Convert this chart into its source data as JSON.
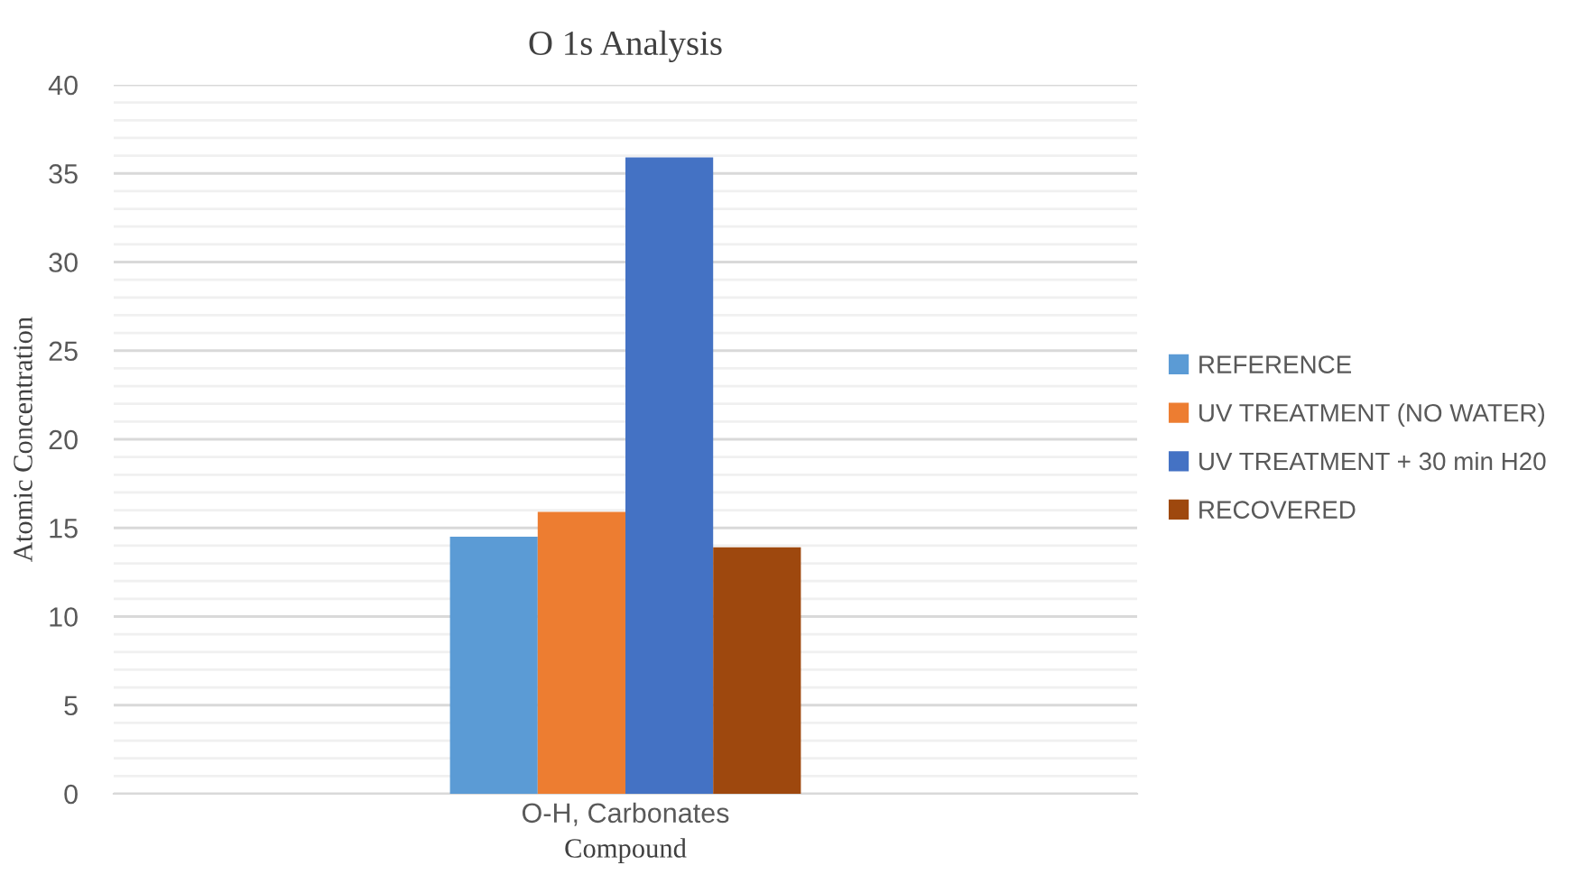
{
  "chart_data": {
    "type": "bar",
    "title": "O 1s Analysis",
    "xlabel": "Compound",
    "ylabel": "Atomic Concentration",
    "categories": [
      "O-H, Carbonates"
    ],
    "series": [
      {
        "name": "REFERENCE",
        "color": "#5b9bd5",
        "values": [
          14.5
        ]
      },
      {
        "name": "UV TREATMENT (NO WATER)",
        "color": "#ed7d31",
        "values": [
          15.9
        ]
      },
      {
        "name": "UV TREATMENT + 30 min H20",
        "color": "#4472c4",
        "values": [
          35.9
        ]
      },
      {
        "name": "RECOVERED",
        "color": "#9e480e",
        "values": [
          13.9
        ]
      }
    ],
    "ylim": [
      0,
      40
    ],
    "yticks": [
      0,
      {
        "value": 1,
        "label": null
      },
      {
        "value": 2,
        "label": null
      },
      {
        "value": 3,
        "label": null
      },
      {
        "value": 4,
        "label": null
      },
      5,
      {
        "value": 6,
        "label": null
      },
      {
        "value": 7,
        "label": null
      },
      {
        "value": 8,
        "label": null
      },
      {
        "value": 9,
        "label": null
      },
      10,
      {
        "value": 11,
        "label": null
      },
      {
        "value": 12,
        "label": null
      },
      {
        "value": 13,
        "label": null
      },
      {
        "value": 14,
        "label": null
      },
      15,
      {
        "value": 16,
        "label": null
      },
      {
        "value": 17,
        "label": null
      },
      {
        "value": 18,
        "label": null
      },
      {
        "value": 19,
        "label": null
      },
      20,
      {
        "value": 21,
        "label": null
      },
      {
        "value": 22,
        "label": null
      },
      {
        "value": 23,
        "label": null
      },
      {
        "value": 24,
        "label": null
      },
      25,
      {
        "value": 26,
        "label": null
      },
      {
        "value": 27,
        "label": null
      },
      {
        "value": 28,
        "label": null
      },
      {
        "value": 29,
        "label": null
      },
      30,
      {
        "value": 31,
        "label": null
      },
      {
        "value": 32,
        "label": null
      },
      {
        "value": 33,
        "label": null
      },
      {
        "value": 34,
        "label": null
      },
      35,
      {
        "value": 36,
        "label": null
      },
      {
        "value": 37,
        "label": null
      },
      {
        "value": 38,
        "label": null
      },
      {
        "value": 39,
        "label": null
      },
      40
    ],
    "grid": "y",
    "legend": "right"
  }
}
